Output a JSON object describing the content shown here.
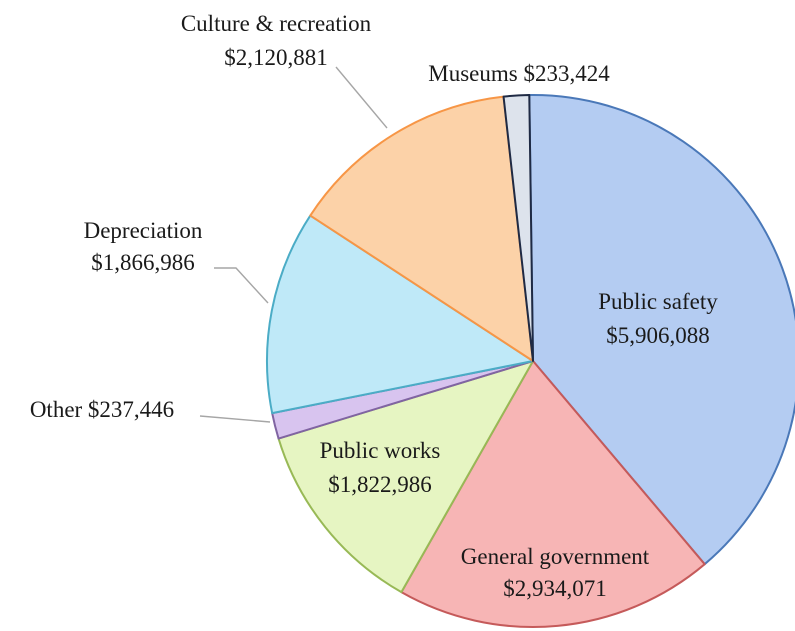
{
  "chart_data": {
    "type": "pie",
    "title": "",
    "slices": [
      {
        "name": "Public safety",
        "value": 5906088,
        "value_label": "$5,906,088",
        "color": "#b4ccf2",
        "edge": "#4a78b8"
      },
      {
        "name": "General government",
        "value": 2934071,
        "value_label": "$2,934,071",
        "color": "#f7b5b5",
        "edge": "#c55a5a"
      },
      {
        "name": "Public works",
        "value": 1822986,
        "value_label": "$1,822,986",
        "color": "#e6f5c2",
        "edge": "#98b956"
      },
      {
        "name": "Other",
        "value": 237446,
        "value_label": "$237,446",
        "color": "#d8c4ef",
        "edge": "#8064a2"
      },
      {
        "name": "Depreciation",
        "value": 1866986,
        "value_label": "$1,866,986",
        "color": "#bfe9f8",
        "edge": "#4bacc6"
      },
      {
        "name": "Culture & recreation",
        "value": 2120881,
        "value_label": "$2,120,881",
        "color": "#fcd2a8",
        "edge": "#f79646"
      },
      {
        "name": "Museums",
        "value": 233424,
        "value_label": "$233,424",
        "color": "#dde3ec",
        "edge": "#1f2a44"
      }
    ],
    "labels": [
      {
        "lines": [
          "Public safety",
          "$5,906,088"
        ]
      },
      {
        "lines": [
          "General government",
          "$2,934,071"
        ]
      },
      {
        "lines": [
          "Public works",
          "$1,822,986"
        ]
      },
      {
        "lines": [
          "Other $237,446"
        ]
      },
      {
        "lines": [
          "Depreciation",
          "$1,866,986"
        ]
      },
      {
        "lines": [
          "Culture & recreation",
          "$2,120,881"
        ]
      },
      {
        "lines": [
          "Museums $233,424"
        ]
      }
    ]
  }
}
